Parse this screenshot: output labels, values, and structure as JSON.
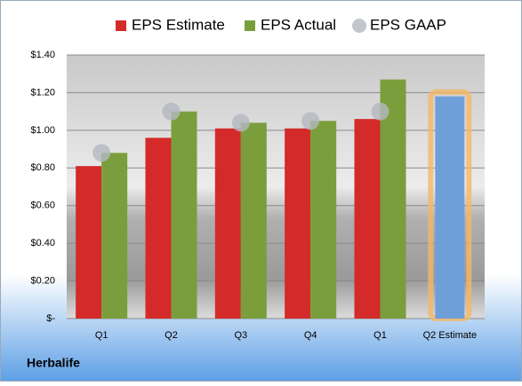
{
  "chart_data": {
    "type": "bar",
    "categories": [
      "Q1",
      "Q2",
      "Q3",
      "Q4",
      "Q1",
      "Q2 Estimate"
    ],
    "series": [
      {
        "name": "EPS Estimate",
        "color": "#d42a2a",
        "colors": [
          "#d42a2a",
          "#d42a2a",
          "#d42a2a",
          "#d42a2a",
          "#d42a2a",
          "#6f9fd8"
        ],
        "values": [
          0.81,
          0.96,
          1.01,
          1.01,
          1.06,
          1.18
        ]
      },
      {
        "name": "EPS Actual",
        "color": "#7a9e3c",
        "values": [
          0.88,
          1.1,
          1.04,
          1.05,
          1.27,
          null
        ]
      },
      {
        "name": "EPS GAAP",
        "color": "#b4b8c0",
        "marker": "circle",
        "values": [
          0.88,
          1.1,
          1.04,
          1.05,
          1.1,
          null
        ]
      }
    ],
    "highlight_color": "#f5b865",
    "ylim": [
      0,
      1.4
    ],
    "yticks": [
      {
        "value": 0,
        "label": "$-"
      },
      {
        "value": 0.2,
        "label": "$0.20"
      },
      {
        "value": 0.4,
        "label": "$0.40"
      },
      {
        "value": 0.6,
        "label": "$0.60"
      },
      {
        "value": 0.8,
        "label": "$0.80"
      },
      {
        "value": 1.0,
        "label": "$1.00"
      },
      {
        "value": 1.2,
        "label": "$1.20"
      },
      {
        "value": 1.4,
        "label": "$1.40"
      }
    ],
    "grid": true,
    "legend": "top",
    "footer": "Herbalife"
  }
}
